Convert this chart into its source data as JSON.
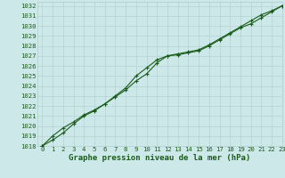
{
  "title": "Graphe pression niveau de la mer (hPa)",
  "background_color": "#cde8e8",
  "grid_color": "#b0cccc",
  "line_color": "#1a5c1a",
  "marker_color": "#1a5c1a",
  "xlim": [
    -0.5,
    23
  ],
  "ylim": [
    1018,
    1032.4
  ],
  "xticks": [
    0,
    1,
    2,
    3,
    4,
    5,
    6,
    7,
    8,
    9,
    10,
    11,
    12,
    13,
    14,
    15,
    16,
    17,
    18,
    19,
    20,
    21,
    22,
    23
  ],
  "yticks": [
    1018,
    1019,
    1020,
    1021,
    1022,
    1023,
    1024,
    1025,
    1026,
    1027,
    1028,
    1029,
    1030,
    1031,
    1032
  ],
  "line1_x": [
    0,
    1,
    2,
    3,
    4,
    5,
    6,
    7,
    8,
    9,
    10,
    11,
    12,
    13,
    14,
    15,
    16,
    17,
    18,
    19,
    20,
    21,
    22,
    23
  ],
  "line1_y": [
    1018.0,
    1019.0,
    1019.8,
    1020.4,
    1021.1,
    1021.6,
    1022.2,
    1022.9,
    1023.6,
    1024.5,
    1025.2,
    1026.3,
    1027.0,
    1027.1,
    1027.3,
    1027.5,
    1028.0,
    1028.6,
    1029.2,
    1029.8,
    1030.2,
    1030.8,
    1031.4,
    1032.0
  ],
  "line2_x": [
    0,
    1,
    2,
    3,
    4,
    5,
    6,
    7,
    8,
    9,
    10,
    11,
    12,
    13,
    14,
    15,
    16,
    17,
    18,
    19,
    20,
    21,
    22,
    23
  ],
  "line2_y": [
    1018.0,
    1018.6,
    1019.3,
    1020.2,
    1021.0,
    1021.5,
    1022.2,
    1023.0,
    1023.8,
    1025.0,
    1025.8,
    1026.6,
    1027.0,
    1027.2,
    1027.4,
    1027.6,
    1028.1,
    1028.7,
    1029.3,
    1029.9,
    1030.5,
    1031.1,
    1031.5,
    1032.0
  ],
  "title_fontsize": 6.5,
  "tick_fontsize": 5.2,
  "title_color": "#1a5c1a",
  "tick_color": "#1a5c1a",
  "figsize": [
    3.2,
    2.0
  ],
  "dpi": 100
}
